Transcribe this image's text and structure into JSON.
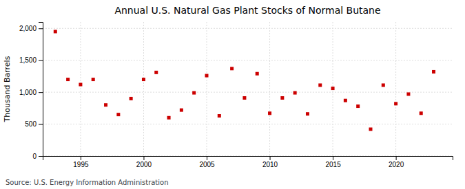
{
  "chart_data": {
    "type": "scatter",
    "title": "Annual U.S. Natural Gas Plant Stocks of Normal Butane",
    "ylabel": "Thousand Barrels",
    "source": "Source: U.S. Energy Information Administration",
    "x": [
      1993,
      1994,
      1995,
      1996,
      1997,
      1998,
      1999,
      2000,
      2001,
      2002,
      2003,
      2004,
      2005,
      2006,
      2007,
      2008,
      2009,
      2010,
      2011,
      2012,
      2013,
      2014,
      2015,
      2016,
      2017,
      2018,
      2019,
      2020,
      2021,
      2022,
      2023
    ],
    "values": [
      1950,
      1200,
      1120,
      1200,
      800,
      650,
      900,
      1200,
      1310,
      600,
      720,
      990,
      1260,
      630,
      1370,
      910,
      1290,
      670,
      910,
      990,
      660,
      1110,
      1060,
      870,
      780,
      420,
      1110,
      820,
      970,
      670,
      1320
    ],
    "color": "#cc0000",
    "marker": "square",
    "xlim": [
      1992.0,
      2024.5
    ],
    "xticks": [
      1995,
      2000,
      2005,
      2010,
      2015,
      2020
    ],
    "ylim": [
      0,
      2100
    ],
    "yticks": [
      0,
      500,
      {
        "value": 1000,
        "label": "1,000"
      },
      {
        "value": 1500,
        "label": "1,500"
      },
      {
        "value": 2000,
        "label": "2,000"
      }
    ],
    "grid": true
  }
}
